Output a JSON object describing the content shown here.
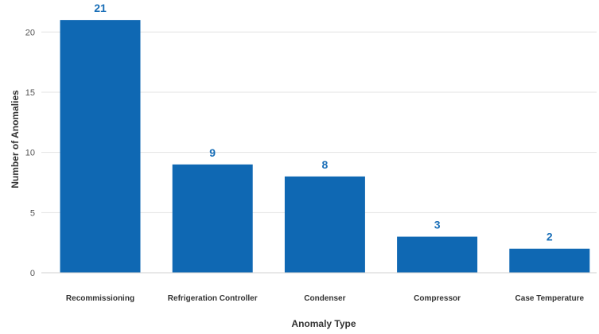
{
  "chart_data": {
    "type": "bar",
    "categories": [
      "Recommissioning",
      "Refrigeration Controller",
      "Condenser",
      "Compressor",
      "Case Temperature"
    ],
    "values": [
      21,
      9,
      8,
      3,
      2
    ],
    "data_labels": [
      "21",
      "9",
      "8",
      "3",
      "2"
    ],
    "title": "",
    "xlabel": "Anomaly Type",
    "ylabel": "Number of Anomalies",
    "ylim": [
      0,
      22
    ],
    "yticks": [
      0,
      5,
      10,
      15,
      20
    ],
    "ytick_labels": [
      "0",
      "5",
      "10",
      "15",
      "20"
    ],
    "grid": true,
    "legend": "none",
    "colors": {
      "bar": "#0f68b3",
      "data_label": "#1a6fb8",
      "grid": "#e3e3e3"
    }
  }
}
